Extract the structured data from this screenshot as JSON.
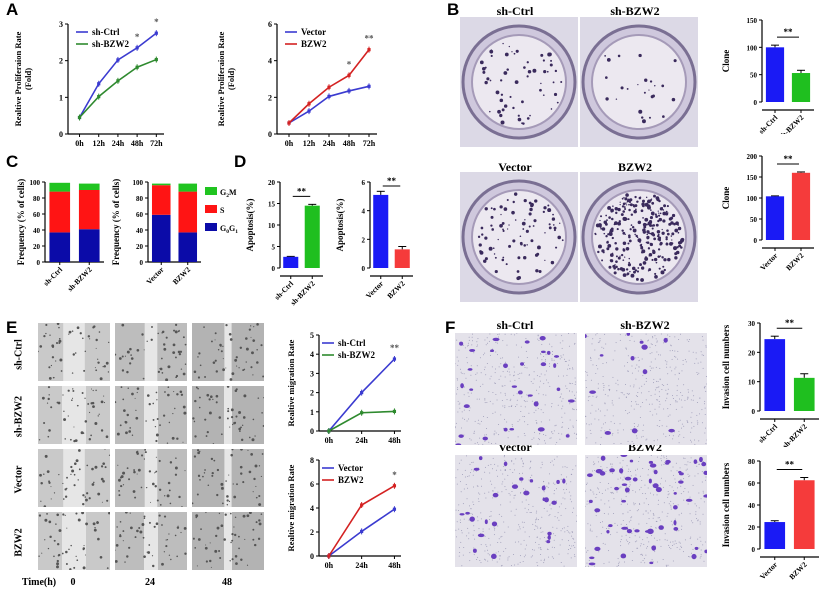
{
  "panels": {
    "A": "A",
    "B": "B",
    "C": "C",
    "D": "D",
    "E": "E",
    "F": "F"
  },
  "colony_images": {
    "columns": [
      "sh-Ctrl",
      "sh-BZW2",
      "Vector",
      "BZW2"
    ]
  },
  "wound_images": {
    "rows": [
      "sh-Ctrl",
      "sh-BZW2",
      "Vector",
      "BZW2"
    ],
    "time_label": "Time(h)",
    "times": [
      "0",
      "24",
      "48"
    ]
  },
  "invasion_images": {
    "columns": [
      "sh-Ctrl",
      "sh-BZW2",
      "Vector",
      "BZW2"
    ]
  },
  "colors": {
    "blue": "#1a1af5",
    "green": "#1fbf1f",
    "red": "#f53b3b",
    "line_blue": "#3b3bd0",
    "line_green": "#2f8a2f",
    "line_red": "#d42222",
    "navy": "#0b0ba8",
    "stack_red": "#ff1414",
    "stack_green": "#20c420"
  },
  "chart_data": [
    {
      "id": "A1",
      "type": "line",
      "x": [
        "0h",
        "12h",
        "24h",
        "48h",
        "72h"
      ],
      "ylabel": "Realtive Proliferaion Rate (Fold)",
      "ylim": [
        0,
        3
      ],
      "yticks": [
        0,
        1,
        2,
        3
      ],
      "legend": "top-left",
      "series": [
        {
          "name": "sh-Ctrl",
          "color": "#3b3bd0",
          "values": [
            0.45,
            1.37,
            2.02,
            2.35,
            2.75
          ]
        },
        {
          "name": "sh-BZW2",
          "color": "#2f8a2f",
          "values": [
            0.45,
            1.02,
            1.45,
            1.82,
            2.03
          ]
        }
      ],
      "annotations": [
        {
          "x": "48h",
          "text": "*"
        },
        {
          "x": "72h",
          "text": "*"
        }
      ]
    },
    {
      "id": "A2",
      "type": "line",
      "x": [
        "0h",
        "12h",
        "24h",
        "48h",
        "72h"
      ],
      "ylabel": "Realtive Proliferaion Rate (Fold)",
      "ylim": [
        0,
        6
      ],
      "yticks": [
        0,
        2,
        4,
        6
      ],
      "legend": "top-left",
      "series": [
        {
          "name": "Vector",
          "color": "#3b3bd0",
          "values": [
            0.6,
            1.25,
            2.05,
            2.35,
            2.6
          ]
        },
        {
          "name": "BZW2",
          "color": "#d42222",
          "values": [
            0.6,
            1.65,
            2.55,
            3.2,
            4.6
          ]
        }
      ],
      "annotations": [
        {
          "x": "48h",
          "text": "*"
        },
        {
          "x": "72h",
          "text": "**"
        }
      ]
    },
    {
      "id": "B1",
      "type": "bar",
      "categories": [
        "sh-Ctrl",
        "sh-BZW2"
      ],
      "values": [
        100,
        53
      ],
      "errors": [
        4,
        5
      ],
      "colors": [
        "#1a1af5",
        "#1fbf1f"
      ],
      "ylabel": "Clone",
      "ylim": [
        0,
        150
      ],
      "yticks": [
        0,
        50,
        100,
        150
      ],
      "significance": "**"
    },
    {
      "id": "B2",
      "type": "bar",
      "categories": [
        "Vector",
        "BZW2"
      ],
      "values": [
        104,
        160
      ],
      "errors": [
        1,
        2
      ],
      "colors": [
        "#1a1af5",
        "#f53b3b"
      ],
      "ylabel": "Clone",
      "ylim": [
        0,
        200
      ],
      "yticks": [
        0,
        50,
        100,
        150,
        200
      ],
      "significance": "**"
    },
    {
      "id": "C1",
      "type": "stacked-bar",
      "categories": [
        "sh-Ctrl",
        "sh-BZW2"
      ],
      "ylabel": "Frequency (% of cells)",
      "ylim": [
        0,
        100
      ],
      "yticks": [
        0,
        20,
        40,
        60,
        80,
        100
      ],
      "series": [
        {
          "name": "G0G1",
          "color": "#0b0ba8",
          "values": [
            37,
            41
          ]
        },
        {
          "name": "S",
          "color": "#ff1414",
          "values": [
            51,
            49
          ]
        },
        {
          "name": "G2M",
          "color": "#20c420",
          "values": [
            11,
            8
          ]
        }
      ]
    },
    {
      "id": "C2",
      "type": "stacked-bar",
      "categories": [
        "Vector",
        "BZW2"
      ],
      "ylabel": "Frequency (% of cells)",
      "ylim": [
        0,
        100
      ],
      "yticks": [
        0,
        20,
        40,
        60,
        80,
        100
      ],
      "legend": "right",
      "series": [
        {
          "name": "G0G1",
          "color": "#0b0ba8",
          "values": [
            59,
            37
          ]
        },
        {
          "name": "S",
          "color": "#ff1414",
          "values": [
            37,
            51
          ]
        },
        {
          "name": "G2M",
          "color": "#20c420",
          "values": [
            2,
            10
          ]
        }
      ]
    },
    {
      "id": "D1",
      "type": "bar",
      "categories": [
        "sh-Ctrl",
        "sh-BZW2"
      ],
      "values": [
        2.6,
        14.5
      ],
      "errors": [
        0.1,
        0.3
      ],
      "colors": [
        "#1a1af5",
        "#1fbf1f"
      ],
      "ylabel": "Apoptosis(%)",
      "ylim": [
        0,
        20
      ],
      "yticks": [
        0,
        5,
        10,
        15,
        20
      ],
      "significance": "**"
    },
    {
      "id": "D2",
      "type": "bar",
      "categories": [
        "Vector",
        "BZW2"
      ],
      "values": [
        5.1,
        1.3
      ],
      "errors": [
        0.25,
        0.2
      ],
      "colors": [
        "#1a1af5",
        "#f53b3b"
      ],
      "ylabel": "Apoptosis(%)",
      "ylim": [
        0,
        6
      ],
      "yticks": [
        0,
        2,
        4,
        6
      ],
      "significance": "**"
    },
    {
      "id": "E1",
      "type": "line",
      "x": [
        "0h",
        "24h",
        "48h"
      ],
      "ylabel": "Realtive migration Rate",
      "ylim": [
        0,
        5
      ],
      "yticks": [
        0,
        1,
        2,
        3,
        4,
        5
      ],
      "legend": "top-left",
      "series": [
        {
          "name": "sh-Ctrl",
          "color": "#3b3bd0",
          "values": [
            0,
            2.0,
            3.75
          ]
        },
        {
          "name": "sh-BZW2",
          "color": "#2f8a2f",
          "values": [
            0,
            0.95,
            1.02
          ]
        }
      ],
      "annotations": [
        {
          "x": "48h",
          "text": "**"
        }
      ]
    },
    {
      "id": "E2",
      "type": "line",
      "x": [
        "0h",
        "24h",
        "48h"
      ],
      "ylabel": "Realtive migration Rate",
      "ylim": [
        0,
        8
      ],
      "yticks": [
        0,
        2,
        4,
        6,
        8
      ],
      "legend": "top-left",
      "series": [
        {
          "name": "Vector",
          "color": "#3b3bd0",
          "values": [
            0,
            2.05,
            3.9
          ]
        },
        {
          "name": "BZW2",
          "color": "#d42222",
          "values": [
            0,
            4.25,
            5.85
          ]
        }
      ],
      "annotations": [
        {
          "x": "48h",
          "text": "*"
        }
      ]
    },
    {
      "id": "F1",
      "type": "bar",
      "categories": [
        "sh-Ctrl",
        "sh-BZW2"
      ],
      "values": [
        24.5,
        11.3
      ],
      "errors": [
        1,
        1.4
      ],
      "colors": [
        "#1a1af5",
        "#1fbf1f"
      ],
      "ylabel": "Invasion cell numbers",
      "ylim": [
        0,
        30
      ],
      "yticks": [
        0,
        10,
        20,
        30
      ],
      "significance": "**"
    },
    {
      "id": "F2",
      "type": "bar",
      "categories": [
        "Vector",
        "BZW2"
      ],
      "values": [
        24.5,
        62.5
      ],
      "errors": [
        1.2,
        2.5
      ],
      "colors": [
        "#1a1af5",
        "#f53b3b"
      ],
      "ylabel": "Invasion cell numbers",
      "ylim": [
        0,
        80
      ],
      "yticks": [
        0,
        20,
        40,
        60,
        80
      ],
      "significance": "**"
    }
  ]
}
